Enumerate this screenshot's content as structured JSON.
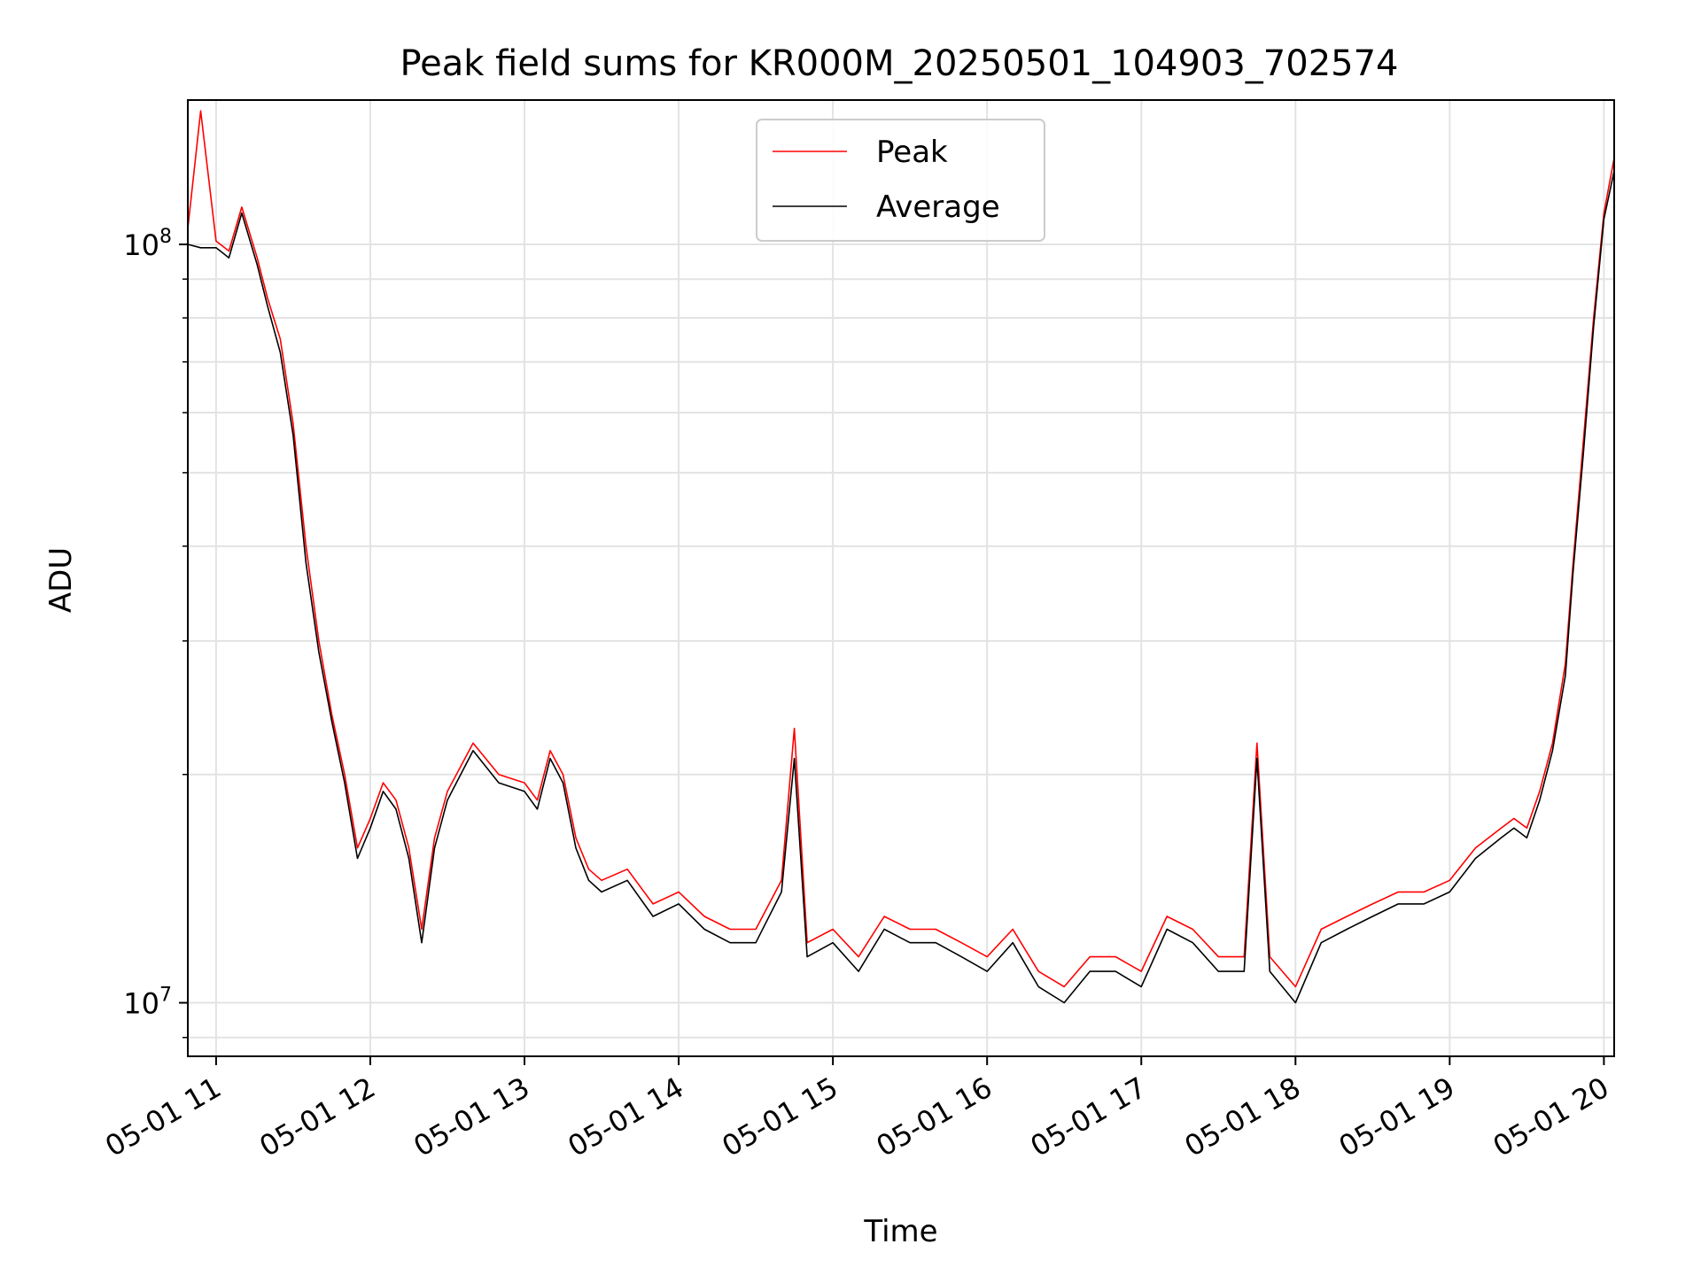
{
  "chart_data": {
    "type": "line",
    "title": "Peak field sums for KR000M_20250501_104903_702574",
    "xlabel": "Time",
    "ylabel": "ADU",
    "y_scale": "log",
    "xlim": [
      "2025-05-01 10:49",
      "2025-05-01 20:04"
    ],
    "ylim": [
      8500000,
      155000000
    ],
    "x_ticks": [
      "05-01 11",
      "05-01 12",
      "05-01 13",
      "05-01 14",
      "05-01 15",
      "05-01 16",
      "05-01 17",
      "05-01 18",
      "05-01 19",
      "05-01 20"
    ],
    "y_major_ticks": [
      {
        "value": 10000000,
        "label_base": "10",
        "label_exp": "7"
      },
      {
        "value": 100000000,
        "label_base": "10",
        "label_exp": "8"
      }
    ],
    "grid": true,
    "legend_position": "upper center",
    "x": [
      "2025-05-01 10:49",
      "2025-05-01 10:54",
      "2025-05-01 11:00",
      "2025-05-01 11:05",
      "2025-05-01 11:10",
      "2025-05-01 11:16",
      "2025-05-01 11:20",
      "2025-05-01 11:25",
      "2025-05-01 11:30",
      "2025-05-01 11:35",
      "2025-05-01 11:40",
      "2025-05-01 11:45",
      "2025-05-01 11:50",
      "2025-05-01 11:55",
      "2025-05-01 12:00",
      "2025-05-01 12:05",
      "2025-05-01 12:10",
      "2025-05-01 12:15",
      "2025-05-01 12:20",
      "2025-05-01 12:25",
      "2025-05-01 12:30",
      "2025-05-01 12:40",
      "2025-05-01 12:50",
      "2025-05-01 13:00",
      "2025-05-01 13:05",
      "2025-05-01 13:10",
      "2025-05-01 13:15",
      "2025-05-01 13:20",
      "2025-05-01 13:25",
      "2025-05-01 13:30",
      "2025-05-01 13:40",
      "2025-05-01 13:50",
      "2025-05-01 14:00",
      "2025-05-01 14:10",
      "2025-05-01 14:20",
      "2025-05-01 14:30",
      "2025-05-01 14:40",
      "2025-05-01 14:45",
      "2025-05-01 14:50",
      "2025-05-01 15:00",
      "2025-05-01 15:10",
      "2025-05-01 15:20",
      "2025-05-01 15:30",
      "2025-05-01 15:40",
      "2025-05-01 15:50",
      "2025-05-01 16:00",
      "2025-05-01 16:10",
      "2025-05-01 16:20",
      "2025-05-01 16:30",
      "2025-05-01 16:40",
      "2025-05-01 16:50",
      "2025-05-01 17:00",
      "2025-05-01 17:10",
      "2025-05-01 17:20",
      "2025-05-01 17:30",
      "2025-05-01 17:40",
      "2025-05-01 17:45",
      "2025-05-01 17:50",
      "2025-05-01 18:00",
      "2025-05-01 18:10",
      "2025-05-01 18:20",
      "2025-05-01 18:30",
      "2025-05-01 18:40",
      "2025-05-01 18:50",
      "2025-05-01 19:00",
      "2025-05-01 19:10",
      "2025-05-01 19:20",
      "2025-05-01 19:25",
      "2025-05-01 19:30",
      "2025-05-01 19:35",
      "2025-05-01 19:40",
      "2025-05-01 19:45",
      "2025-05-01 19:48",
      "2025-05-01 19:52",
      "2025-05-01 19:56",
      "2025-05-01 20:00",
      "2025-05-01 20:04"
    ],
    "series": [
      {
        "name": "Peak",
        "color": "#ff0000",
        "values": [
          105000000,
          150000000,
          101000000,
          98000000,
          112000000,
          96000000,
          85000000,
          75000000,
          58000000,
          40000000,
          30000000,
          24000000,
          20000000,
          16000000,
          17500000,
          19500000,
          18500000,
          16000000,
          12500000,
          16500000,
          19000000,
          22000000,
          20000000,
          19500000,
          18500000,
          21500000,
          20000000,
          16500000,
          15000000,
          14500000,
          15000000,
          13500000,
          14000000,
          13000000,
          12500000,
          12500000,
          14500000,
          23000000,
          12000000,
          12500000,
          11500000,
          13000000,
          12500000,
          12500000,
          12000000,
          11500000,
          12500000,
          11000000,
          10500000,
          11500000,
          11500000,
          11000000,
          13000000,
          12500000,
          11500000,
          11500000,
          22000000,
          11500000,
          10500000,
          12500000,
          13000000,
          13500000,
          14000000,
          14000000,
          14500000,
          16000000,
          17000000,
          17500000,
          17000000,
          19000000,
          22000000,
          28000000,
          38000000,
          55000000,
          80000000,
          110000000,
          130000000
        ]
      },
      {
        "name": "Average",
        "color": "#000000",
        "values": [
          100000000,
          99000000,
          99000000,
          96000000,
          110000000,
          94000000,
          83000000,
          72000000,
          56000000,
          38000000,
          29000000,
          23500000,
          19500000,
          15500000,
          17000000,
          19000000,
          18000000,
          15500000,
          12000000,
          16000000,
          18500000,
          21500000,
          19500000,
          19000000,
          18000000,
          21000000,
          19500000,
          16000000,
          14500000,
          14000000,
          14500000,
          13000000,
          13500000,
          12500000,
          12000000,
          12000000,
          14000000,
          21000000,
          11500000,
          12000000,
          11000000,
          12500000,
          12000000,
          12000000,
          11500000,
          11000000,
          12000000,
          10500000,
          10000000,
          11000000,
          11000000,
          10500000,
          12500000,
          12000000,
          11000000,
          11000000,
          21000000,
          11000000,
          10000000,
          12000000,
          12500000,
          13000000,
          13500000,
          13500000,
          14000000,
          15500000,
          16500000,
          17000000,
          16500000,
          18500000,
          21500000,
          27000000,
          37000000,
          53000000,
          78000000,
          108000000,
          125000000
        ]
      }
    ]
  }
}
